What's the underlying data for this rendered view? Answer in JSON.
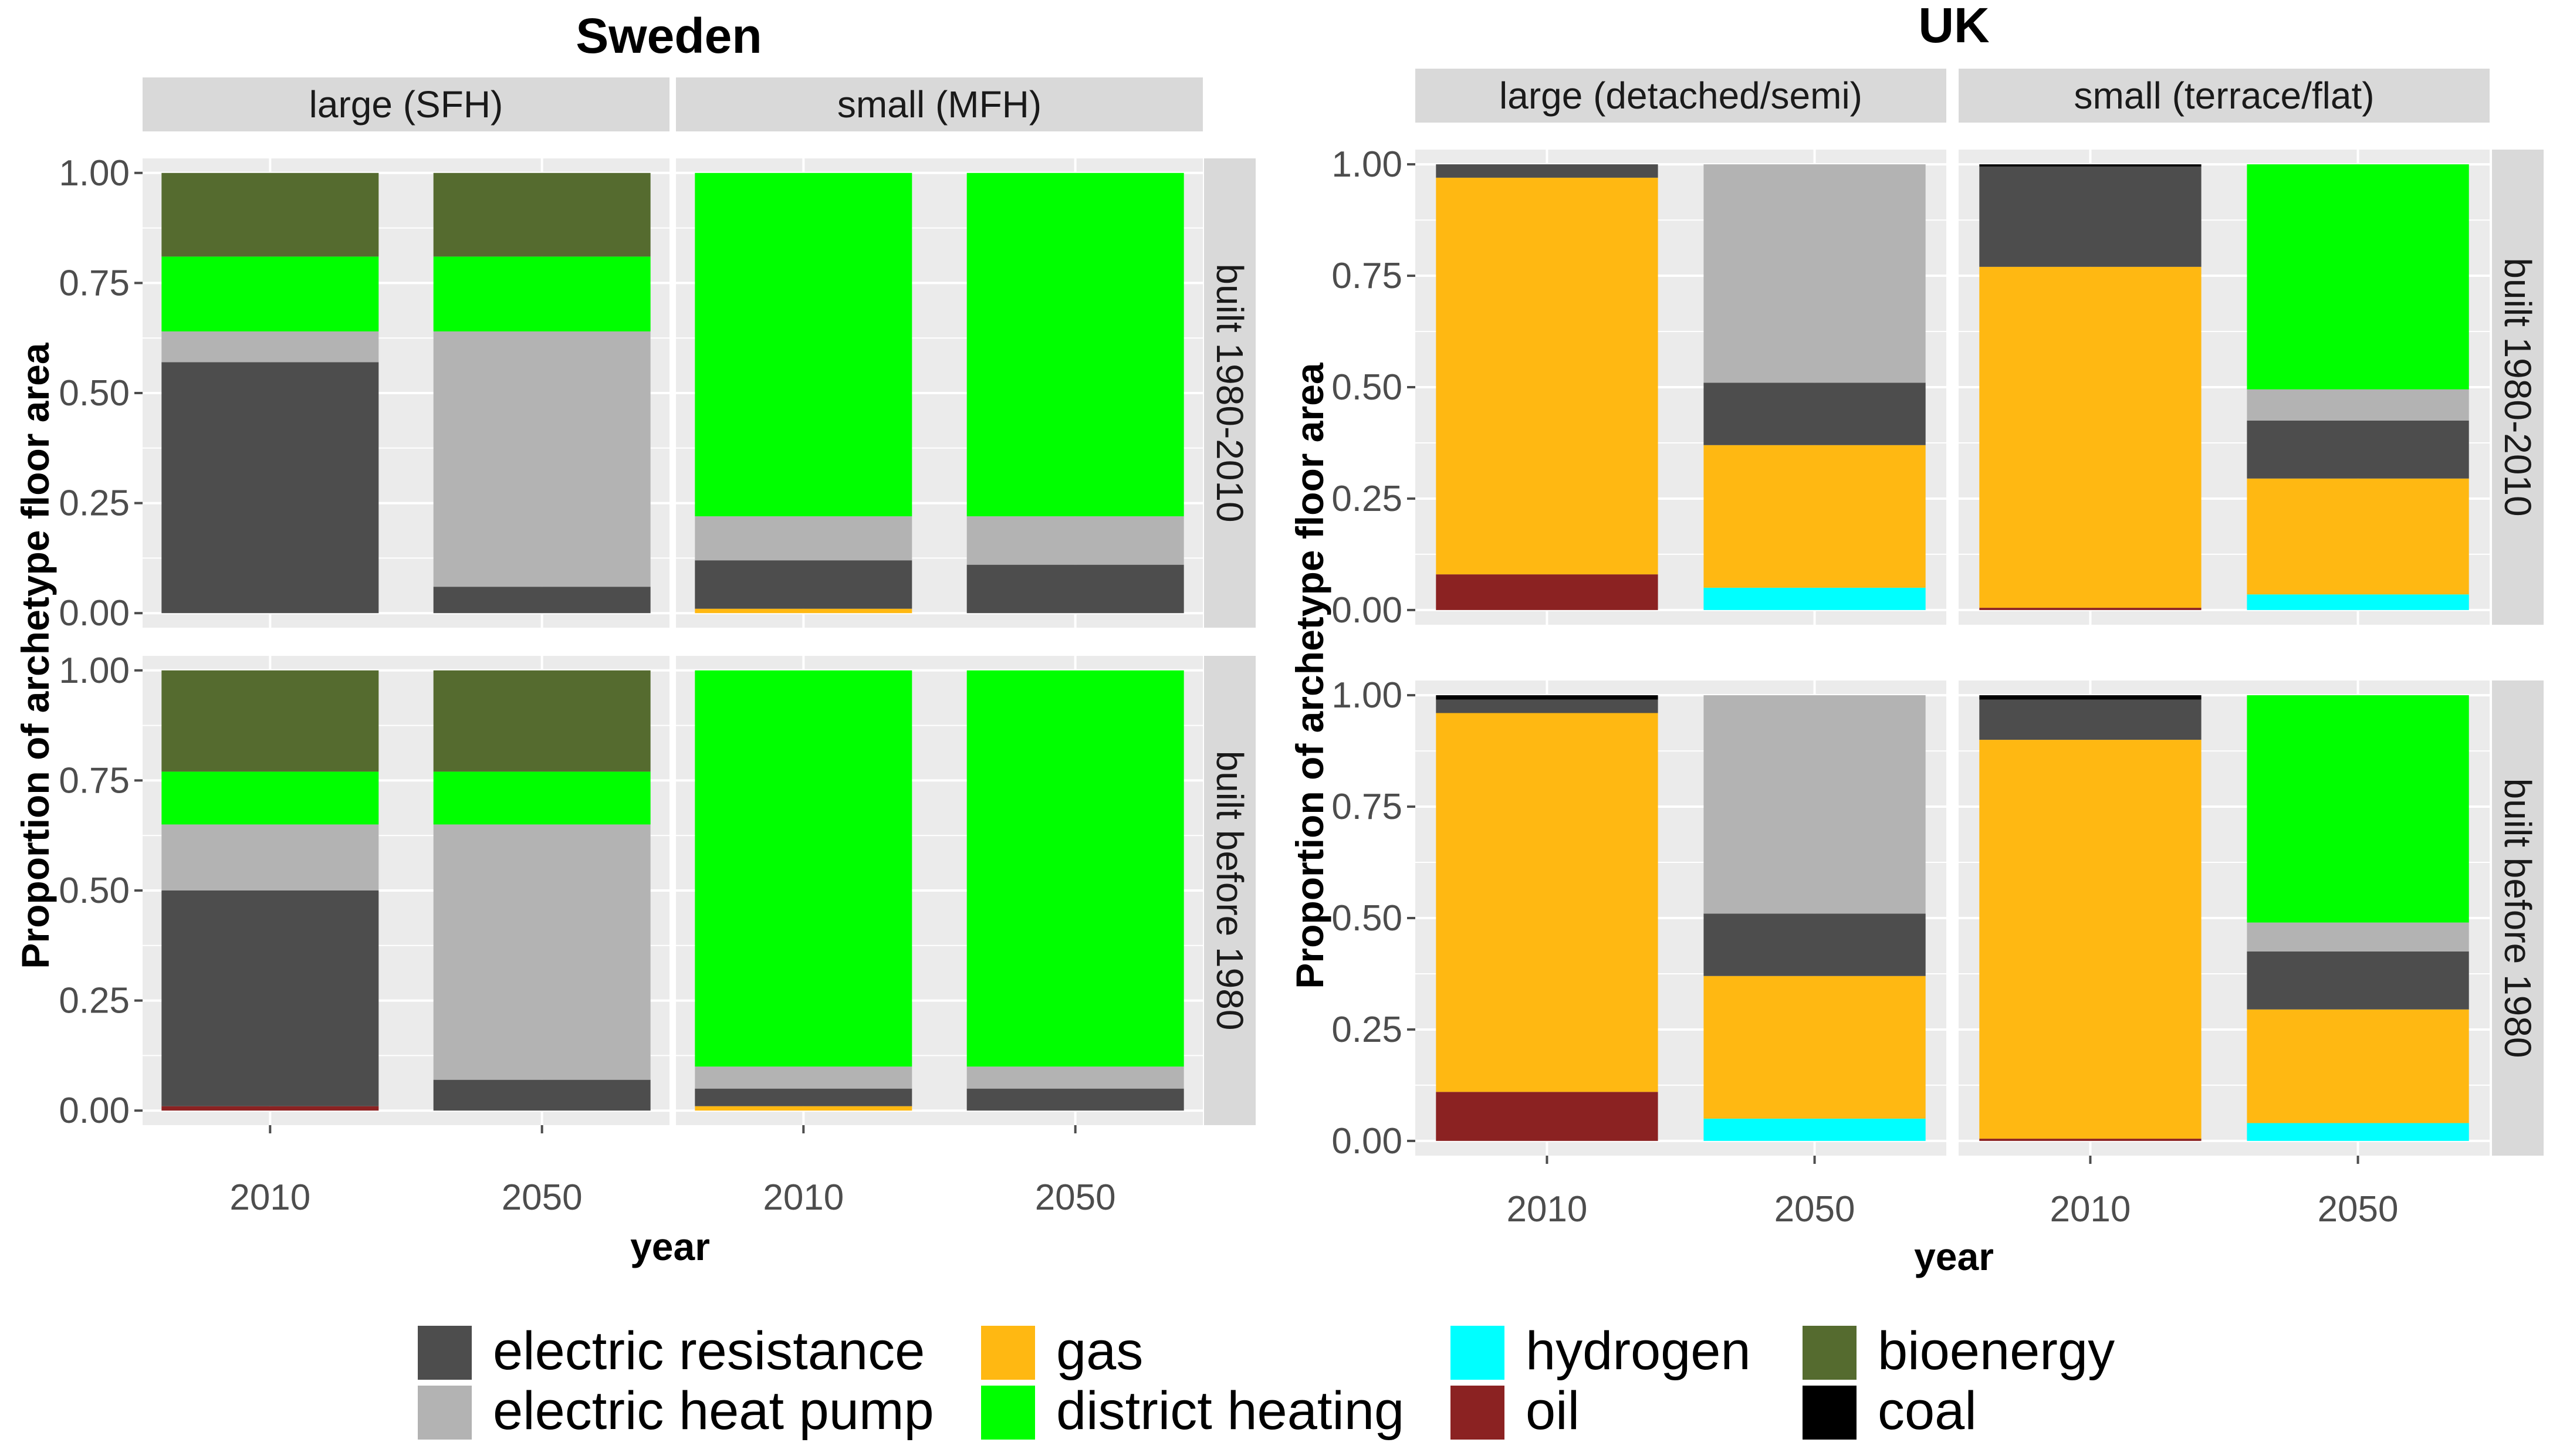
{
  "chart_data": [
    {
      "type": "bar",
      "stacked": true,
      "title": "Sweden",
      "xlabel": "year",
      "ylabel": "Proportion of archetype floor area",
      "ylim": [
        0,
        1
      ],
      "yticks": [
        "0.00",
        "0.25",
        "0.50",
        "0.75",
        "1.00"
      ],
      "categories": [
        "2010",
        "2050"
      ],
      "column_facets": [
        "large (SFH)",
        "small (MFH)"
      ],
      "row_facets": [
        "built 1980-2010",
        "built before 1980"
      ],
      "grid": true,
      "legend_position": "bottom",
      "stack_order": [
        "oil",
        "hydrogen",
        "gas",
        "electric resistance",
        "electric heat pump",
        "district heating",
        "bioenergy",
        "coal"
      ],
      "panels": [
        {
          "column": "large (SFH)",
          "row": "built 1980-2010",
          "values": {
            "2010": {
              "oil": 0.0,
              "electric resistance": 0.57,
              "electric heat pump": 0.07,
              "district heating": 0.17,
              "bioenergy": 0.19
            },
            "2050": {
              "oil": 0.0,
              "electric resistance": 0.06,
              "electric heat pump": 0.58,
              "district heating": 0.17,
              "bioenergy": 0.19
            }
          }
        },
        {
          "column": "small (MFH)",
          "row": "built 1980-2010",
          "values": {
            "2010": {
              "gas": 0.01,
              "electric resistance": 0.11,
              "electric heat pump": 0.1,
              "district heating": 0.78
            },
            "2050": {
              "electric resistance": 0.11,
              "electric heat pump": 0.11,
              "district heating": 0.78
            }
          }
        },
        {
          "column": "large (SFH)",
          "row": "built before 1980",
          "values": {
            "2010": {
              "oil": 0.01,
              "electric resistance": 0.49,
              "electric heat pump": 0.15,
              "district heating": 0.12,
              "bioenergy": 0.23
            },
            "2050": {
              "electric resistance": 0.07,
              "electric heat pump": 0.58,
              "district heating": 0.12,
              "bioenergy": 0.23
            }
          }
        },
        {
          "column": "small (MFH)",
          "row": "built before 1980",
          "values": {
            "2010": {
              "gas": 0.01,
              "electric resistance": 0.04,
              "electric heat pump": 0.05,
              "district heating": 0.9
            },
            "2050": {
              "electric resistance": 0.05,
              "electric heat pump": 0.05,
              "district heating": 0.9
            }
          }
        }
      ]
    },
    {
      "type": "bar",
      "stacked": true,
      "title": "UK",
      "xlabel": "year",
      "ylabel": "Proportion of archetype floor area",
      "ylim": [
        0,
        1
      ],
      "yticks": [
        "0.00",
        "0.25",
        "0.50",
        "0.75",
        "1.00"
      ],
      "categories": [
        "2010",
        "2050"
      ],
      "column_facets": [
        "large (detached/semi)",
        "small (terrace/flat)"
      ],
      "row_facets": [
        "built 1980-2010",
        "built before 1980"
      ],
      "grid": true,
      "legend_position": "bottom",
      "stack_order": [
        "oil",
        "hydrogen",
        "gas",
        "electric resistance",
        "electric heat pump",
        "district heating",
        "bioenergy",
        "coal"
      ],
      "panels": [
        {
          "column": "large (detached/semi)",
          "row": "built 1980-2010",
          "values": {
            "2010": {
              "oil": 0.08,
              "gas": 0.89,
              "electric resistance": 0.03
            },
            "2050": {
              "hydrogen": 0.05,
              "gas": 0.32,
              "electric resistance": 0.14,
              "electric heat pump": 0.49
            }
          }
        },
        {
          "column": "small (terrace/flat)",
          "row": "built 1980-2010",
          "values": {
            "2010": {
              "oil": 0.005,
              "gas": 0.765,
              "electric resistance": 0.225,
              "coal": 0.005
            },
            "2050": {
              "hydrogen": 0.035,
              "gas": 0.26,
              "electric resistance": 0.13,
              "electric heat pump": 0.07,
              "district heating": 0.505
            }
          }
        },
        {
          "column": "large (detached/semi)",
          "row": "built before 1980",
          "values": {
            "2010": {
              "oil": 0.11,
              "gas": 0.85,
              "electric resistance": 0.03,
              "coal": 0.01
            },
            "2050": {
              "hydrogen": 0.05,
              "gas": 0.32,
              "electric resistance": 0.14,
              "electric heat pump": 0.49
            }
          }
        },
        {
          "column": "small (terrace/flat)",
          "row": "built before 1980",
          "values": {
            "2010": {
              "oil": 0.005,
              "gas": 0.895,
              "electric resistance": 0.09,
              "coal": 0.01
            },
            "2050": {
              "hydrogen": 0.04,
              "gas": 0.255,
              "electric resistance": 0.13,
              "electric heat pump": 0.065,
              "district heating": 0.51
            }
          }
        }
      ]
    }
  ],
  "legend": {
    "items": [
      {
        "label": "electric resistance",
        "color": "#4d4d4d"
      },
      {
        "label": "electric heat pump",
        "color": "#b3b3b3"
      },
      {
        "label": "gas",
        "color": "#ffb812"
      },
      {
        "label": "district heating",
        "color": "#00ff00"
      },
      {
        "label": "hydrogen",
        "color": "#00ffff"
      },
      {
        "label": "oil",
        "color": "#8b2222"
      },
      {
        "label": "bioenergy",
        "color": "#556b2f"
      },
      {
        "label": "coal",
        "color": "#000000"
      }
    ]
  },
  "colors": {
    "panel_background": "#ebebeb",
    "strip_background": "#d9d9d9",
    "gridline": "#ffffff"
  }
}
